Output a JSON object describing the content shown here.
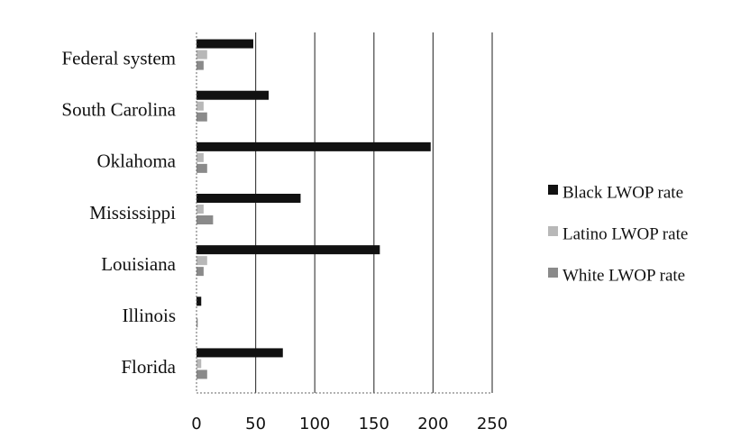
{
  "chart_data": {
    "type": "bar",
    "orientation": "horizontal",
    "categories": [
      "Federal system",
      "South Carolina",
      "Oklahoma",
      "Mississippi",
      "Louisiana",
      "Illinois",
      "Florida"
    ],
    "series": [
      {
        "name": "Black LWOP rate",
        "color": "#111111",
        "values": [
          48,
          61,
          198,
          88,
          155,
          4,
          73
        ]
      },
      {
        "name": "Latino LWOP rate",
        "color": "#b8b8b8",
        "values": [
          9,
          6,
          6,
          6,
          9,
          0,
          4
        ]
      },
      {
        "name": "White LWOP rate",
        "color": "#8a8a8a",
        "values": [
          6,
          9,
          9,
          14,
          6,
          1,
          9
        ]
      }
    ],
    "xlim": [
      0,
      250
    ],
    "xticks": [
      "0",
      "50",
      "100",
      "150",
      "200",
      "250"
    ],
    "grid": true,
    "legend": "right",
    "title": "",
    "xlabel": "",
    "ylabel": ""
  }
}
